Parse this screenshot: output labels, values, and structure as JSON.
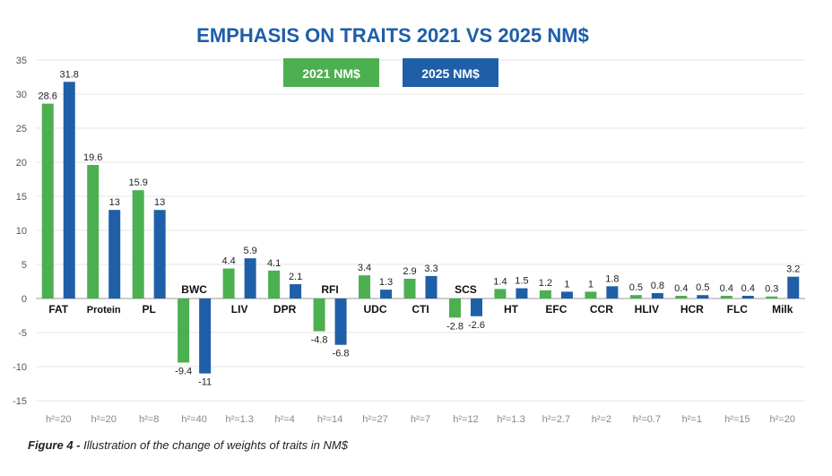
{
  "chart_data": {
    "type": "bar",
    "title": "EMPHASIS ON TRAITS 2021 VS 2025 NM$",
    "categories": [
      "FAT",
      "Protein",
      "PL",
      "BWC",
      "LIV",
      "DPR",
      "RFI",
      "UDC",
      "CTI",
      "SCS",
      "HT",
      "EFC",
      "CCR",
      "HLIV",
      "HCR",
      "FLC",
      "Milk"
    ],
    "heritability_labels": [
      "h²=20",
      "h²=20",
      "h²=8",
      "h²=40",
      "h²=1.3",
      "h²=4",
      "h²=14",
      "h²=27",
      "h²=7",
      "h²=12",
      "h²=1.3",
      "h²=2.7",
      "h²=2",
      "h²=0.7",
      "h²=1",
      "h²=15",
      "h²=20"
    ],
    "series": [
      {
        "name": "2021 NM$",
        "color": "#4caf50",
        "values": [
          28.6,
          19.6,
          15.9,
          -9.4,
          4.4,
          4.1,
          -4.8,
          3.4,
          2.9,
          -2.8,
          1.4,
          1.2,
          1,
          0.5,
          0.4,
          0.4,
          0.3
        ]
      },
      {
        "name": "2025 NM$",
        "color": "#1f5fa8",
        "values": [
          31.8,
          13,
          13,
          -11,
          5.9,
          2.1,
          -6.8,
          1.3,
          3.3,
          -2.6,
          1.5,
          1,
          1.8,
          0.8,
          0.5,
          0.4,
          3.2
        ]
      }
    ],
    "value_labels": [
      [
        "28.6",
        "19.6",
        "15.9",
        "-9.4",
        "4.4",
        "4.1",
        "-4.8",
        "3.4",
        "2.9",
        "-2.8",
        "1.4",
        "1.2",
        "1",
        "0.5",
        "0.4",
        "0.4",
        "0.3"
      ],
      [
        "31.8",
        "13",
        "13",
        "-11",
        "5.9",
        "2.1",
        "-6.8",
        "1.3",
        "3.3",
        "-2.6",
        "1.5",
        "1",
        "1.8",
        "0.8",
        "0.5",
        "0.4",
        "3.2"
      ]
    ],
    "ylim": [
      -15,
      35
    ],
    "yticks": [
      35,
      30,
      25,
      20,
      15,
      10,
      5,
      0,
      -5,
      -10,
      -15
    ],
    "grid": true,
    "legend_position": "top-center",
    "xlabel": "",
    "ylabel": ""
  },
  "caption": {
    "label": "Figure 4 -",
    "text": "Illustration of the change of weights of traits in NM$"
  }
}
